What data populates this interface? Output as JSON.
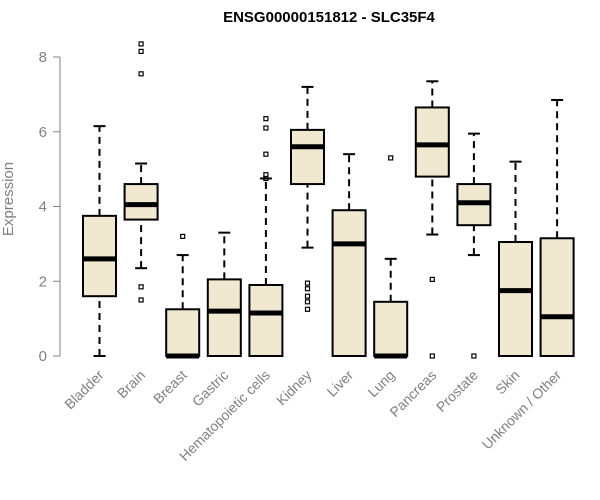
{
  "chart_data": {
    "type": "box",
    "title": "ENSG00000151812 - SLC35F4",
    "xlabel": "",
    "ylabel": "Expression",
    "ylim": [
      0,
      8.2
    ],
    "yticks": [
      0,
      2,
      4,
      6,
      8
    ],
    "colors": {
      "box_fill": "#f0e8d0",
      "stroke": "#000000",
      "axis_text": "#808080"
    },
    "categories": [
      "Bladder",
      "Brain",
      "Breast",
      "Gastric",
      "Hematopoietic cells",
      "Kidney",
      "Liver",
      "Lung",
      "Pancreas",
      "Prostate",
      "Skin",
      "Unknown / Other"
    ],
    "boxes": [
      {
        "category": "Bladder",
        "whisker_low": 0.0,
        "q1": 1.6,
        "median": 2.6,
        "q3": 3.75,
        "whisker_high": 6.15,
        "outliers": []
      },
      {
        "category": "Brain",
        "whisker_low": 2.35,
        "q1": 3.65,
        "median": 4.05,
        "q3": 4.6,
        "whisker_high": 5.15,
        "outliers": [
          8.35,
          8.15,
          7.55,
          1.85,
          1.5
        ]
      },
      {
        "category": "Breast",
        "whisker_low": 0.0,
        "q1": 0.0,
        "median": 0.0,
        "q3": 1.25,
        "whisker_high": 2.7,
        "outliers": [
          3.2
        ]
      },
      {
        "category": "Gastric",
        "whisker_low": 0.0,
        "q1": 0.0,
        "median": 1.2,
        "q3": 2.05,
        "whisker_high": 3.3,
        "outliers": []
      },
      {
        "category": "Hematopoietic cells",
        "whisker_low": 0.0,
        "q1": 0.0,
        "median": 1.15,
        "q3": 1.9,
        "whisker_high": 4.75,
        "outliers": [
          6.35,
          6.1,
          5.4,
          4.85,
          4.75
        ]
      },
      {
        "category": "Kidney",
        "whisker_low": 2.9,
        "q1": 4.6,
        "median": 5.6,
        "q3": 6.05,
        "whisker_high": 7.2,
        "outliers": [
          1.95,
          1.8,
          1.6,
          1.45,
          1.25
        ]
      },
      {
        "category": "Liver",
        "whisker_low": 0.0,
        "q1": 0.0,
        "median": 3.0,
        "q3": 3.9,
        "whisker_high": 5.4,
        "outliers": []
      },
      {
        "category": "Lung",
        "whisker_low": 0.0,
        "q1": 0.0,
        "median": 0.0,
        "q3": 1.45,
        "whisker_high": 2.6,
        "outliers": [
          5.3
        ]
      },
      {
        "category": "Pancreas",
        "whisker_low": 3.25,
        "q1": 4.8,
        "median": 5.65,
        "q3": 6.65,
        "whisker_high": 7.35,
        "outliers": [
          2.05,
          0.0
        ]
      },
      {
        "category": "Prostate",
        "whisker_low": 2.7,
        "q1": 3.5,
        "median": 4.1,
        "q3": 4.6,
        "whisker_high": 5.95,
        "outliers": [
          0.0
        ]
      },
      {
        "category": "Skin",
        "whisker_low": 0.0,
        "q1": 0.0,
        "median": 1.75,
        "q3": 3.05,
        "whisker_high": 5.2,
        "outliers": []
      },
      {
        "category": "Unknown / Other",
        "whisker_low": 0.0,
        "q1": 0.0,
        "median": 1.05,
        "q3": 3.15,
        "whisker_high": 6.85,
        "outliers": []
      }
    ]
  }
}
